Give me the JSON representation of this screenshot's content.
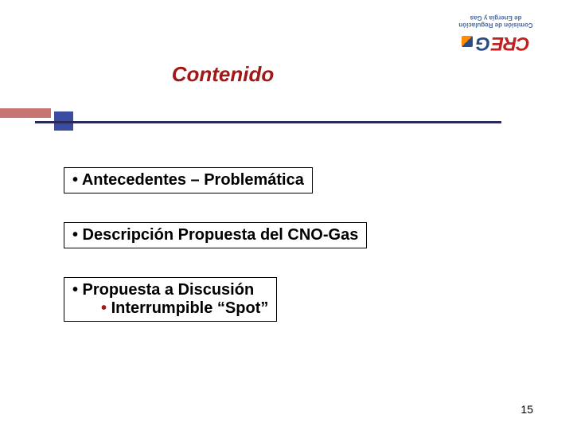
{
  "logo": {
    "line1": "Comisión de Regulación",
    "line2": "de Energía y Gas",
    "mark_letters_red": "CRE",
    "mark_letters_blue": "G"
  },
  "title": "Contenido",
  "items": [
    {
      "main": "• Antecedentes – Problemática"
    },
    {
      "prefix": "• Descripción ",
      "bold_suffix": "Propuesta del CNO-Gas"
    },
    {
      "main": "• Propuesta a Discusión",
      "sub_bullet": "•",
      "sub_text": "  Interrumpible “Spot”"
    }
  ],
  "page_number": "15",
  "colors": {
    "title_color": "#a01818",
    "line_color": "#2a2a5a",
    "square_color": "#3b4b9e",
    "text_color": "#000000"
  }
}
